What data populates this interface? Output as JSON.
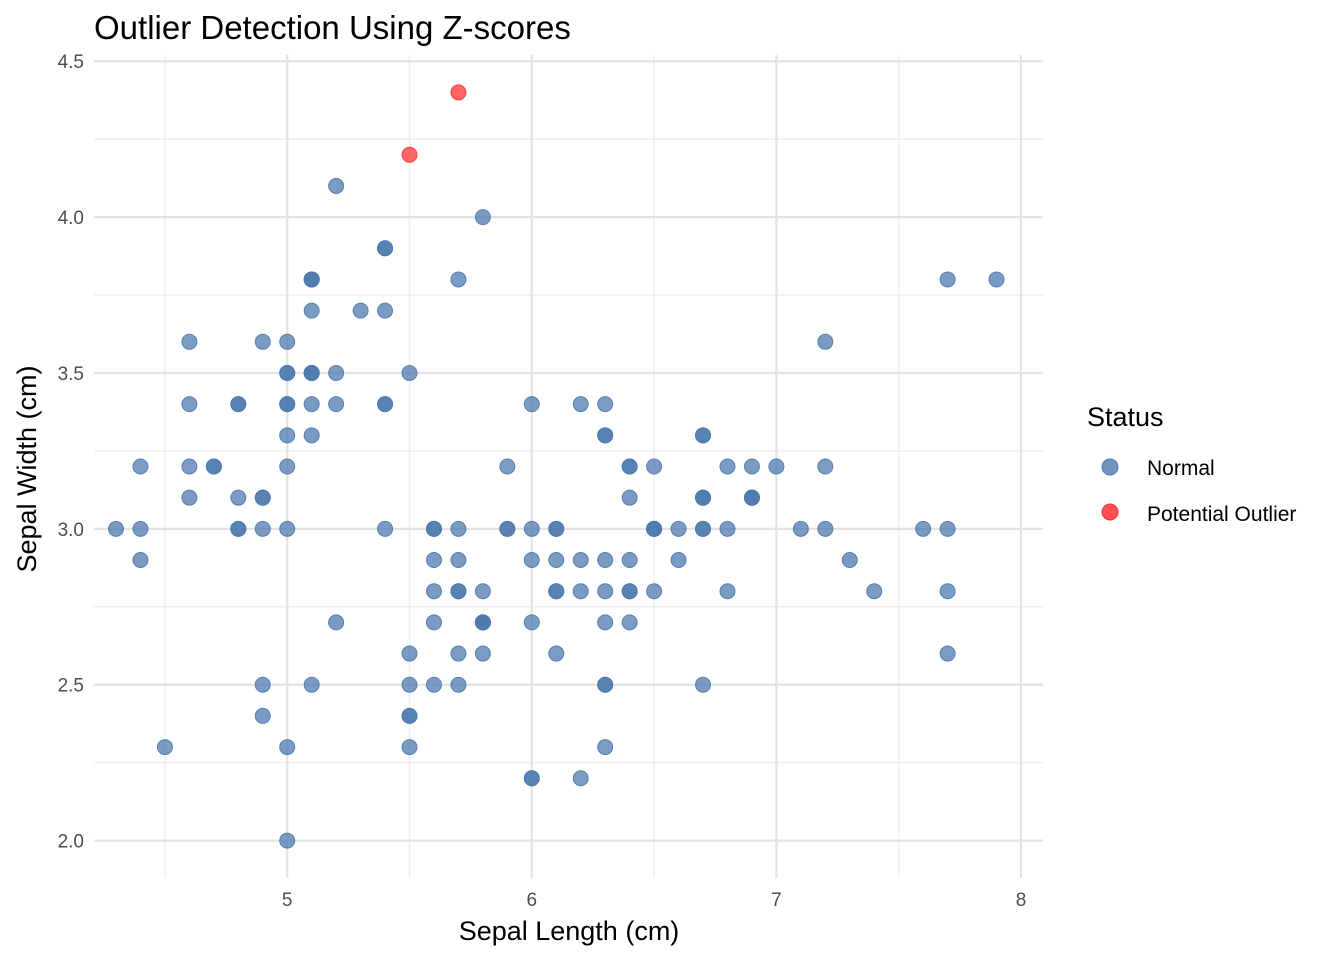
{
  "chart_data": {
    "type": "scatter",
    "title": "Outlier Detection Using Z-scores",
    "xlabel": "Sepal Length (cm)",
    "ylabel": "Sepal Width (cm)",
    "xlim": [
      4.21,
      8.09
    ],
    "ylim": [
      1.88,
      4.52
    ],
    "x_ticks": [
      5,
      6,
      7,
      8
    ],
    "y_ticks": [
      2.0,
      2.5,
      3.0,
      3.5,
      4.0,
      4.5
    ],
    "x_tick_labels": [
      "5",
      "6",
      "7",
      "8"
    ],
    "y_tick_labels": [
      "2.0",
      "2.5",
      "3.0",
      "3.5",
      "4.0",
      "4.5"
    ],
    "grid": true,
    "legend": {
      "title": "Status",
      "position": "right",
      "entries": [
        {
          "label": "Normal",
          "color": "#4E79AD"
        },
        {
          "label": "Potential Outlier",
          "color": "#FF3333"
        }
      ]
    },
    "series": [
      {
        "name": "Normal",
        "color": "#4E79AD",
        "points": [
          [
            5.1,
            3.5
          ],
          [
            4.9,
            3.0
          ],
          [
            4.7,
            3.2
          ],
          [
            4.6,
            3.1
          ],
          [
            5.0,
            3.6
          ],
          [
            5.4,
            3.9
          ],
          [
            4.6,
            3.4
          ],
          [
            5.0,
            3.4
          ],
          [
            4.4,
            2.9
          ],
          [
            4.9,
            3.1
          ],
          [
            5.4,
            3.7
          ],
          [
            4.8,
            3.4
          ],
          [
            4.8,
            3.0
          ],
          [
            4.3,
            3.0
          ],
          [
            5.1,
            3.5
          ],
          [
            5.4,
            3.9
          ],
          [
            5.1,
            3.5
          ],
          [
            5.7,
            3.8
          ],
          [
            5.1,
            3.8
          ],
          [
            5.4,
            3.4
          ],
          [
            5.1,
            3.7
          ],
          [
            4.6,
            3.6
          ],
          [
            5.1,
            3.3
          ],
          [
            4.8,
            3.4
          ],
          [
            5.0,
            3.0
          ],
          [
            5.0,
            3.4
          ],
          [
            5.2,
            3.5
          ],
          [
            5.2,
            3.4
          ],
          [
            4.7,
            3.2
          ],
          [
            4.8,
            3.1
          ],
          [
            5.4,
            3.4
          ],
          [
            5.2,
            4.1
          ],
          [
            4.9,
            3.1
          ],
          [
            5.0,
            3.2
          ],
          [
            5.5,
            3.5
          ],
          [
            4.9,
            3.6
          ],
          [
            4.4,
            3.0
          ],
          [
            5.1,
            3.4
          ],
          [
            5.0,
            3.5
          ],
          [
            4.5,
            2.3
          ],
          [
            4.4,
            3.2
          ],
          [
            5.0,
            3.5
          ],
          [
            5.1,
            3.8
          ],
          [
            4.8,
            3.0
          ],
          [
            5.1,
            3.8
          ],
          [
            4.6,
            3.2
          ],
          [
            5.3,
            3.7
          ],
          [
            5.0,
            3.3
          ],
          [
            5.8,
            4.0
          ],
          [
            7.0,
            3.2
          ],
          [
            6.4,
            3.2
          ],
          [
            6.9,
            3.1
          ],
          [
            5.5,
            2.3
          ],
          [
            6.5,
            2.8
          ],
          [
            5.7,
            2.8
          ],
          [
            6.3,
            3.3
          ],
          [
            4.9,
            2.4
          ],
          [
            6.6,
            2.9
          ],
          [
            5.2,
            2.7
          ],
          [
            5.0,
            2.0
          ],
          [
            5.9,
            3.0
          ],
          [
            6.0,
            2.2
          ],
          [
            6.1,
            2.9
          ],
          [
            5.6,
            2.9
          ],
          [
            6.7,
            3.1
          ],
          [
            5.6,
            3.0
          ],
          [
            5.8,
            2.7
          ],
          [
            6.2,
            2.2
          ],
          [
            5.6,
            2.5
          ],
          [
            5.9,
            3.2
          ],
          [
            6.1,
            2.8
          ],
          [
            6.3,
            2.5
          ],
          [
            6.1,
            2.8
          ],
          [
            6.4,
            2.9
          ],
          [
            6.6,
            3.0
          ],
          [
            6.8,
            2.8
          ],
          [
            6.7,
            3.0
          ],
          [
            6.0,
            2.9
          ],
          [
            5.7,
            2.6
          ],
          [
            5.5,
            2.4
          ],
          [
            5.5,
            2.4
          ],
          [
            5.8,
            2.7
          ],
          [
            6.0,
            2.7
          ],
          [
            5.4,
            3.0
          ],
          [
            6.0,
            3.4
          ],
          [
            6.7,
            3.1
          ],
          [
            6.3,
            2.3
          ],
          [
            5.6,
            3.0
          ],
          [
            5.5,
            2.5
          ],
          [
            5.5,
            2.6
          ],
          [
            6.1,
            3.0
          ],
          [
            5.8,
            2.6
          ],
          [
            5.0,
            2.3
          ],
          [
            5.6,
            2.7
          ],
          [
            5.7,
            3.0
          ],
          [
            5.7,
            2.9
          ],
          [
            6.2,
            2.9
          ],
          [
            5.1,
            2.5
          ],
          [
            5.7,
            2.8
          ],
          [
            6.3,
            3.3
          ],
          [
            5.8,
            2.7
          ],
          [
            7.1,
            3.0
          ],
          [
            6.3,
            2.9
          ],
          [
            6.5,
            3.0
          ],
          [
            7.6,
            3.0
          ],
          [
            4.9,
            2.5
          ],
          [
            7.3,
            2.9
          ],
          [
            6.7,
            2.5
          ],
          [
            7.2,
            3.6
          ],
          [
            6.5,
            3.2
          ],
          [
            6.4,
            2.7
          ],
          [
            6.8,
            3.0
          ],
          [
            5.7,
            2.5
          ],
          [
            5.8,
            2.8
          ],
          [
            6.4,
            3.2
          ],
          [
            6.5,
            3.0
          ],
          [
            7.7,
            3.8
          ],
          [
            7.7,
            2.6
          ],
          [
            6.0,
            2.2
          ],
          [
            6.9,
            3.2
          ],
          [
            5.6,
            2.8
          ],
          [
            7.7,
            2.8
          ],
          [
            6.3,
            2.7
          ],
          [
            6.7,
            3.3
          ],
          [
            7.2,
            3.2
          ],
          [
            6.2,
            2.8
          ],
          [
            6.1,
            3.0
          ],
          [
            6.4,
            2.8
          ],
          [
            7.2,
            3.0
          ],
          [
            7.4,
            2.8
          ],
          [
            7.9,
            3.8
          ],
          [
            6.4,
            2.8
          ],
          [
            6.3,
            2.8
          ],
          [
            6.1,
            2.6
          ],
          [
            7.7,
            3.0
          ],
          [
            6.3,
            3.4
          ],
          [
            6.4,
            3.1
          ],
          [
            6.0,
            3.0
          ],
          [
            6.9,
            3.1
          ],
          [
            6.7,
            3.1
          ],
          [
            6.9,
            3.1
          ],
          [
            5.8,
            2.7
          ],
          [
            6.8,
            3.2
          ],
          [
            6.7,
            3.3
          ],
          [
            6.7,
            3.0
          ],
          [
            6.3,
            2.5
          ],
          [
            6.5,
            3.0
          ],
          [
            6.2,
            3.4
          ],
          [
            5.9,
            3.0
          ]
        ]
      },
      {
        "name": "Potential Outlier",
        "color": "#FF3333",
        "points": [
          [
            5.7,
            4.4
          ],
          [
            5.5,
            4.2
          ]
        ]
      }
    ]
  }
}
